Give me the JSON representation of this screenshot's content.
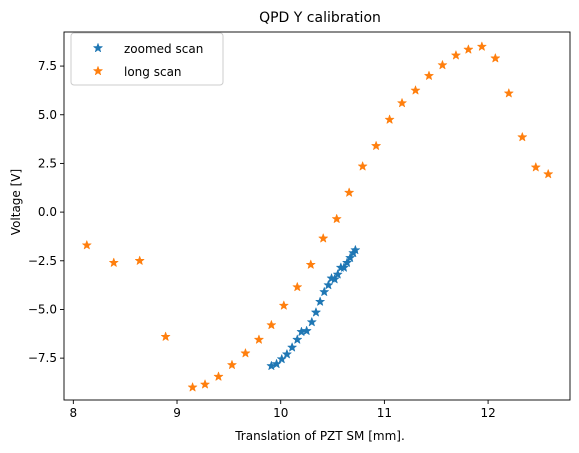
{
  "chart_data": {
    "type": "scatter",
    "title": "QPD Y calibration",
    "xlabel": "Translation of PZT SM [mm].",
    "ylabel": "Voltage [V]",
    "xlim": [
      7.91,
      12.79
    ],
    "ylim": [
      -9.65,
      9.25
    ],
    "xticks": [
      8,
      9,
      10,
      11,
      12
    ],
    "xtick_labels": [
      "8",
      "9",
      "10",
      "11",
      "12"
    ],
    "yticks": [
      -7.5,
      -5.0,
      -2.5,
      0.0,
      2.5,
      5.0,
      7.5
    ],
    "ytick_labels": [
      "−7.5",
      "−5.0",
      "−2.5",
      "0.0",
      "2.5",
      "5.0",
      "7.5"
    ],
    "grid": false,
    "legend_position": "upper-left",
    "series": [
      {
        "name": "zoomed scan",
        "color": "#1f77b4",
        "marker": "star",
        "x": [
          9.91,
          9.96,
          10.01,
          10.06,
          10.11,
          10.16,
          10.2,
          10.25,
          10.3,
          10.34,
          10.38,
          10.42,
          10.46,
          10.49,
          10.52,
          10.55,
          10.58,
          10.61,
          10.64,
          10.67,
          10.7,
          10.72
        ],
        "y": [
          -7.9,
          -7.8,
          -7.55,
          -7.3,
          -6.95,
          -6.55,
          -6.15,
          -6.1,
          -5.65,
          -5.15,
          -4.6,
          -4.1,
          -3.75,
          -3.4,
          -3.45,
          -3.2,
          -2.85,
          -2.85,
          -2.6,
          -2.35,
          -2.1,
          -1.95
        ]
      },
      {
        "name": "long scan",
        "color": "#ff7f0e",
        "marker": "star",
        "x": [
          8.13,
          8.39,
          8.64,
          8.89,
          9.15,
          9.27,
          9.4,
          9.53,
          9.66,
          9.79,
          9.91,
          10.03,
          10.16,
          10.29,
          10.41,
          10.54,
          10.66,
          10.79,
          10.92,
          11.05,
          11.17,
          11.3,
          11.43,
          11.56,
          11.69,
          11.81,
          11.94,
          12.07,
          12.2,
          12.33,
          12.46,
          12.58
        ],
        "y": [
          -1.7,
          -2.6,
          -2.5,
          -6.4,
          -9.0,
          -8.85,
          -8.45,
          -7.85,
          -7.25,
          -6.55,
          -5.8,
          -4.8,
          -3.85,
          -2.7,
          -1.35,
          -0.35,
          1.0,
          2.35,
          3.4,
          4.75,
          5.6,
          6.25,
          7.0,
          7.55,
          8.05,
          8.35,
          8.5,
          7.9,
          6.1,
          3.85,
          2.3,
          1.95
        ]
      }
    ]
  }
}
